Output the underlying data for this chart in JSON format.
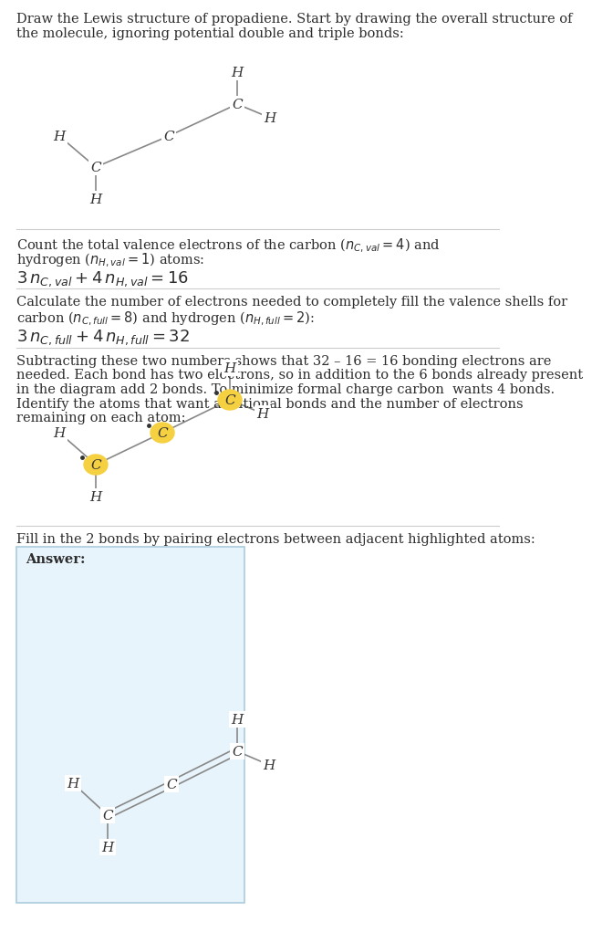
{
  "bg_color": "#ffffff",
  "text_color": "#2d2d2d",
  "bond_color": "#888888",
  "highlight_color": "#f5d040",
  "answer_box_color": "#e8f4fb",
  "answer_box_border": "#aaccdd",
  "divider_color": "#cccccc",
  "line1": "Draw the Lewis structure of propadiene. Start by drawing the overall structure of",
  "line2": "the molecule, ignoring potential double and triple bonds:",
  "s2_line1": "Count the total valence electrons of the carbon (",
  "s2_eq": "3 $n_{C,val}$ + 4 $n_{H,val}$ = 16",
  "s3_line1": "Calculate the number of electrons needed to completely fill the valence shells for",
  "s3_line2": "carbon ($n_{C,full}$ = 8) and hydrogen ($n_{H,full}$ = 2):",
  "s3_eq": "3 $n_{C,full}$ + 4 $n_{H,full}$ = 32",
  "s4_lines": [
    "Subtracting these two numbers shows that 32 – 16 = 16 bonding electrons are",
    "needed. Each bond has two electrons, so in addition to the 6 bonds already present",
    "in the diagram add 2 bonds. To minimize formal charge carbon  wants 4 bonds.",
    "Identify the atoms that want additional bonds and the number of electrons",
    "remaining on each atom:"
  ],
  "s5_line": "Fill in the 2 bonds by pairing electrons between adjacent highlighted atoms:",
  "answer_label": "Answer:"
}
